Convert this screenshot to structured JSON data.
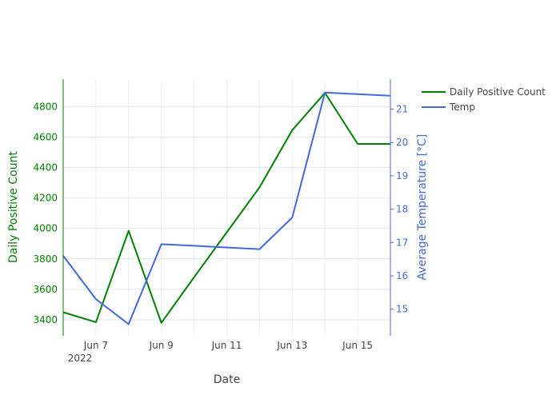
{
  "chart_data": {
    "type": "line",
    "title": "",
    "xlabel": "Date",
    "x_tick_labels": [
      "Jun 7",
      "Jun 9",
      "Jun 11",
      "Jun 13",
      "Jun 15"
    ],
    "x_year_label": "2022",
    "x": [
      "2022-06-06",
      "2022-06-07",
      "2022-06-08",
      "2022-06-09",
      "2022-06-10",
      "2022-06-11",
      "2022-06-12",
      "2022-06-13",
      "2022-06-14",
      "2022-06-15",
      "2022-06-16"
    ],
    "xlim": [
      "2022-06-06",
      "2022-06-16"
    ],
    "y_left": {
      "label": "Daily Positive Count",
      "range": [
        3295,
        4980
      ],
      "ticks": [
        3400,
        3600,
        3800,
        4000,
        4200,
        4400,
        4600,
        4800
      ],
      "color": "#008000"
    },
    "y_right": {
      "label": "Average Temperature [°C]",
      "range": [
        14.2,
        21.9
      ],
      "ticks": [
        15,
        16,
        17,
        18,
        19,
        20,
        21
      ],
      "color": "#4169e1"
    },
    "grid": true,
    "legend_position": "top-right",
    "series": [
      {
        "name": "Daily Positive Count",
        "axis": "left",
        "color": "#008000",
        "values": [
          3450,
          3385,
          3985,
          3380,
          3680,
          3975,
          4270,
          4645,
          4890,
          4555,
          4555
        ]
      },
      {
        "name": "Temp",
        "axis": "right",
        "color": "#4169e1",
        "values": [
          16.6,
          15.3,
          14.55,
          16.95,
          16.9,
          16.85,
          16.8,
          17.75,
          21.5,
          21.45,
          21.4
        ]
      }
    ]
  }
}
